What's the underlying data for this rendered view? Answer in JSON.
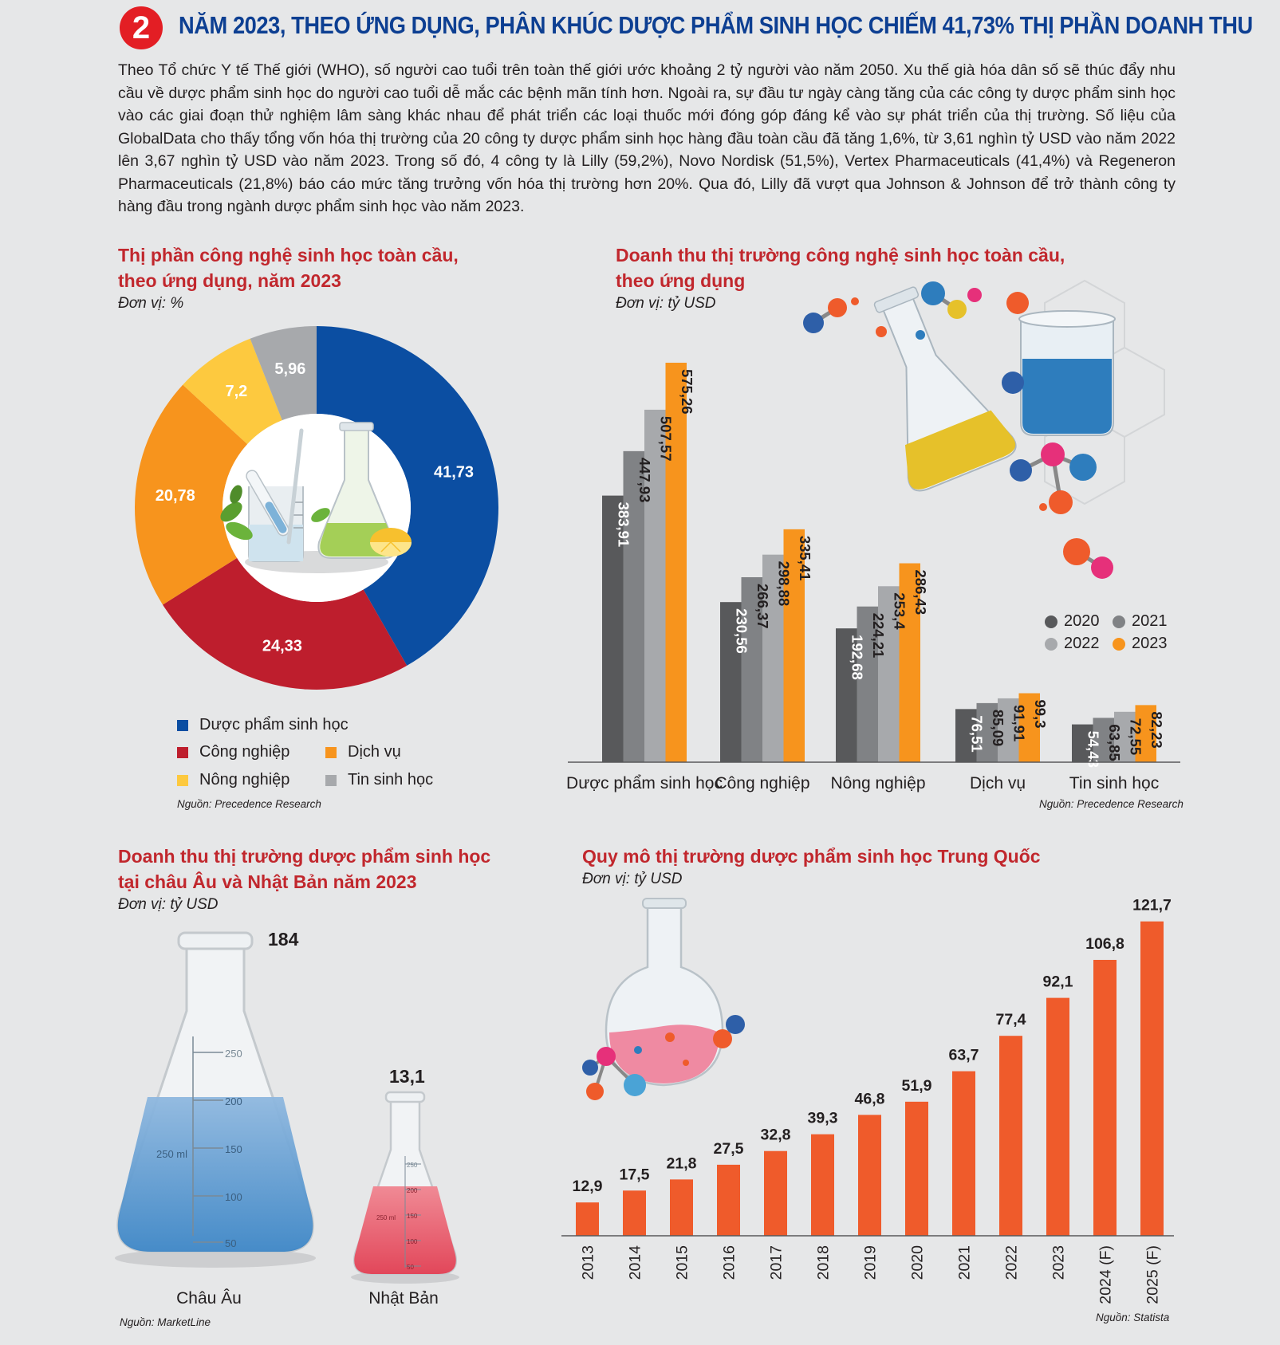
{
  "header": {
    "number": "2",
    "title": "NĂM 2023, THEO ỨNG DỤNG, PHÂN KHÚC DƯỢC PHẨM SINH HỌC CHIẾM 41,73% THỊ PHẦN DOANH THU"
  },
  "intro": "Theo Tổ chức Y tế Thế giới (WHO), số người cao tuổi trên toàn thế giới ước khoảng 2 tỷ người vào năm 2050. Xu thế già hóa dân số sẽ thúc đẩy nhu cầu về dược phẩm sinh học do người cao tuổi dễ mắc các bệnh mãn tính hơn. Ngoài ra, sự đầu tư ngày càng tăng của các công ty dược phẩm sinh học vào các giai đoạn thử nghiệm lâm sàng khác nhau để phát triển các loại thuốc mới đóng góp đáng kể vào sự phát triển của thị trường. Số liệu của GlobalData cho thấy tổng vốn hóa thị trường của 20 công ty dược phẩm sinh học hàng đầu toàn cầu đã tăng 1,6%, từ 3,61 nghìn tỷ USD vào năm 2022 lên 3,67 nghìn tỷ USD vào năm 2023. Trong số đó, 4 công ty là Lilly (59,2%), Novo Nordisk (51,5%), Vertex Pharmaceuticals (41,4%) và Regeneron Pharmaceuticals (21,8%) báo cáo mức tăng trưởng vốn hóa thị trường hơn 20%. Qua đó, Lilly đã vượt qua Johnson & Johnson để trở thành công ty hàng đầu trong ngành dược phẩm sinh học vào năm 2023.",
  "chart_data": [
    {
      "type": "pie",
      "title_line1": "Thị phần công nghệ sinh học toàn cầu,",
      "title_line2": "theo ứng dụng, năm 2023",
      "unit": "Đơn vị: %",
      "source": "Nguồn: Precedence Research",
      "slices": [
        {
          "name": "Dược phẩm sinh học",
          "value": 41.73,
          "label": "41,73",
          "color": "#0b4ea2"
        },
        {
          "name": "Công nghiệp",
          "value": 24.33,
          "label": "24,33",
          "color": "#be1e2d"
        },
        {
          "name": "Dịch vụ",
          "value": 20.78,
          "label": "20,78",
          "color": "#f7941d"
        },
        {
          "name": "Nông nghiệp",
          "value": 7.2,
          "label": "7,2",
          "color": "#fdc93f"
        },
        {
          "name": "Tin sinh học",
          "value": 5.96,
          "label": "5,96",
          "color": "#a7a9ac"
        }
      ]
    },
    {
      "type": "bar",
      "title_line1": "Doanh thu thị trường công nghệ sinh học toàn cầu,",
      "title_line2": "theo ứng dụng",
      "unit": "Đơn vị: tỷ USD",
      "source": "Nguồn: Precedence Research",
      "categories": [
        "Dược phẩm sinh học",
        "Công nghiệp",
        "Nông nghiệp",
        "Dịch vụ",
        "Tin sinh học"
      ],
      "series": [
        {
          "name": "2020",
          "color": "#58595b",
          "values": [
            383.91,
            230.56,
            192.68,
            76.51,
            54.43
          ],
          "labels": [
            "383,91",
            "230,56",
            "192,68",
            "76,51",
            "54,43"
          ]
        },
        {
          "name": "2021",
          "color": "#808285",
          "values": [
            447.93,
            266.37,
            224.21,
            85.09,
            63.85
          ],
          "labels": [
            "447,93",
            "266,37",
            "224,21",
            "85,09",
            "63,85"
          ]
        },
        {
          "name": "2022",
          "color": "#a7a9ac",
          "values": [
            507.57,
            298.88,
            253.4,
            91.91,
            72.55
          ],
          "labels": [
            "507,57",
            "298,88",
            "253,4",
            "91,91",
            "72,55"
          ]
        },
        {
          "name": "2023",
          "color": "#f7941d",
          "values": [
            575.26,
            335.41,
            286.43,
            99.3,
            82.23
          ],
          "labels": [
            "575,26",
            "335,41",
            "286,43",
            "99,3",
            "82,23"
          ]
        }
      ]
    },
    {
      "type": "bar",
      "title_line1": "Doanh thu thị trường dược phẩm sinh học",
      "title_line2": "tại châu Âu và Nhật Bản năm 2023",
      "unit": "Đơn vị: tỷ USD",
      "source": "Nguồn: MarketLine",
      "categories": [
        "Châu Âu",
        "Nhật Bản"
      ],
      "values": [
        184,
        13.1
      ],
      "labels": [
        "184",
        "13,1"
      ]
    },
    {
      "type": "bar",
      "title_line1": "Quy mô thị trường dược phẩm sinh học Trung Quốc",
      "unit": "Đơn vị: tỷ USD",
      "source": "Nguồn: Statista",
      "categories": [
        "2013",
        "2014",
        "2015",
        "2016",
        "2017",
        "2018",
        "2019",
        "2020",
        "2021",
        "2022",
        "2023",
        "2024 (F)",
        "2025 (F)"
      ],
      "values": [
        12.9,
        17.5,
        21.8,
        27.5,
        32.8,
        39.3,
        46.8,
        51.9,
        63.7,
        77.4,
        92.1,
        106.8,
        121.7
      ],
      "labels": [
        "12,9",
        "17,5",
        "21,8",
        "27,5",
        "32,8",
        "39,3",
        "46,8",
        "51,9",
        "63,7",
        "77,4",
        "92,1",
        "106,8",
        "121,7"
      ],
      "color": "#ef5b2b"
    }
  ],
  "flask_ticks": {
    "europe": [
      "250",
      "200",
      "150",
      "100",
      "50",
      "250 ml"
    ],
    "japan": [
      "250",
      "200",
      "150",
      "100",
      "50",
      "250 ml"
    ]
  }
}
